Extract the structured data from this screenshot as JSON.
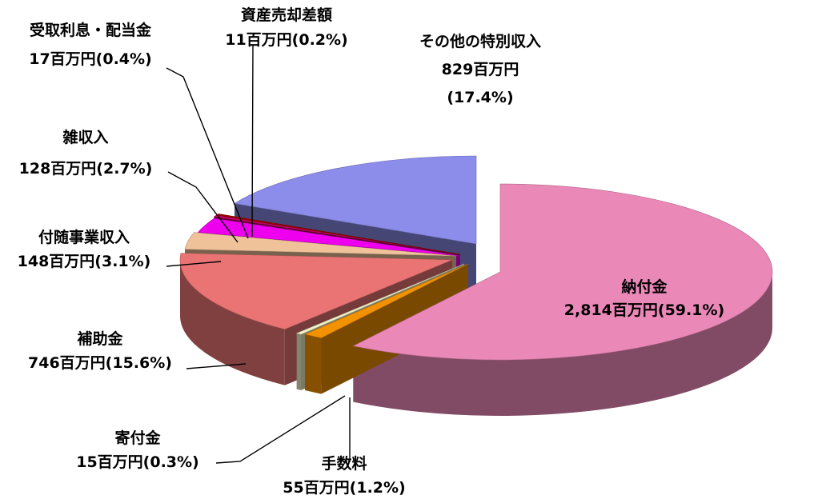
{
  "chart_data": {
    "type": "pie",
    "subtype": "exploded-3d",
    "unit": "百万円",
    "colors": {
      "納付金": "#ea88b8",
      "手数料": "#f39200",
      "寄付金": "#f2f2c8",
      "補助金": "#ea7474",
      "付随事業収入": "#f0c29a",
      "雑収入": "#ee00ee",
      "受取利息・配当金": "#c00060",
      "資産売却差額": "#a00000",
      "その他の特別収入": "#8c8cea"
    },
    "slices": [
      {
        "name": "納付金",
        "value": 2814,
        "percent": 59.1,
        "value_text": "2,814百万円(59.1%)"
      },
      {
        "name": "手数料",
        "value": 55,
        "percent": 1.2,
        "value_text": "55百万円(1.2%)"
      },
      {
        "name": "寄付金",
        "value": 15,
        "percent": 0.3,
        "value_text": "15百万円(0.3%)"
      },
      {
        "name": "補助金",
        "value": 746,
        "percent": 15.6,
        "value_text": "746百万円(15.6%)"
      },
      {
        "name": "付随事業収入",
        "value": 148,
        "percent": 3.1,
        "value_text": "148百万円(3.1%)"
      },
      {
        "name": "雑収入",
        "value": 128,
        "percent": 2.7,
        "value_text": "128百万円(2.7%)"
      },
      {
        "name": "受取利息・配当金",
        "value": 17,
        "percent": 0.4,
        "value_text": "17百万円(0.4%)"
      },
      {
        "name": "資産売却差額",
        "value": 11,
        "percent": 0.2,
        "value_text": "11百万円(0.2%)"
      },
      {
        "name": "その他の特別収入",
        "value": 829,
        "percent": 17.4,
        "value_text_line1": "829百万円",
        "value_text_line2": "(17.4%)"
      }
    ]
  }
}
